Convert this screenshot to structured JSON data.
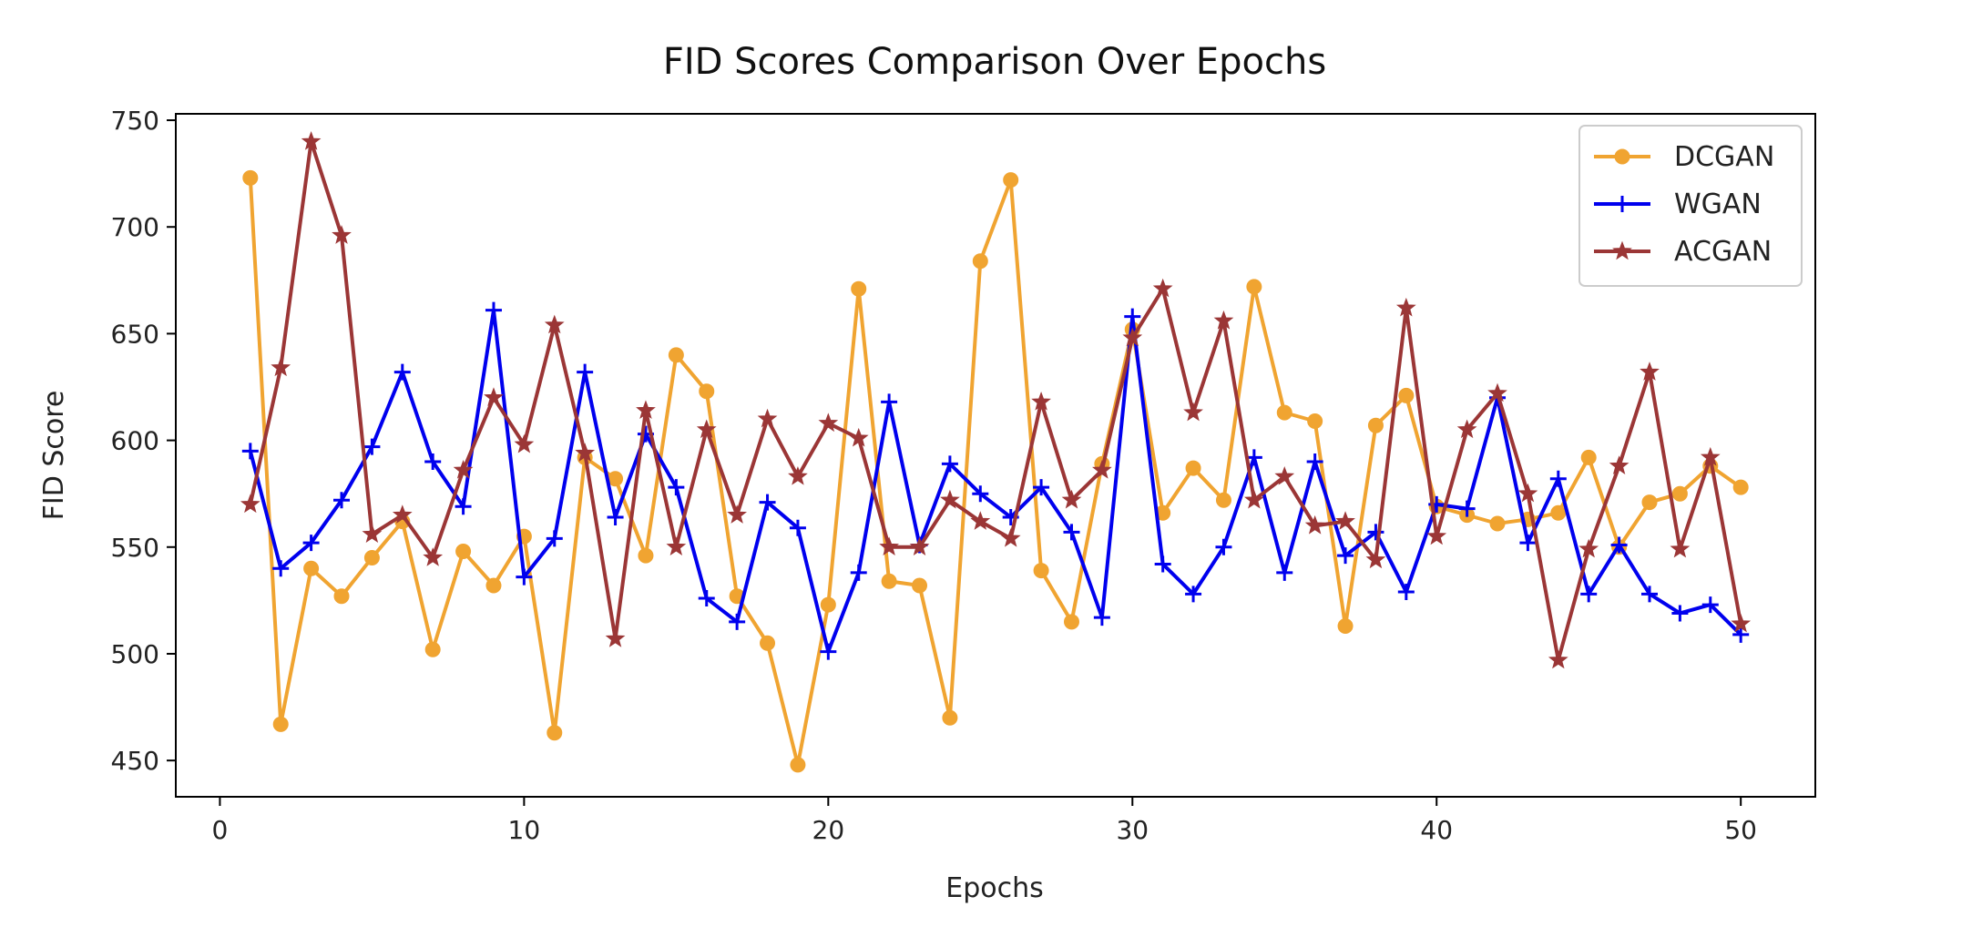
{
  "chart_data": {
    "type": "line",
    "title": "FID Scores Comparison Over Epochs",
    "xlabel": "Epochs",
    "ylabel": "FID Score",
    "xlim": [
      -1.45,
      52.45
    ],
    "ylim": [
      433,
      753
    ],
    "xticks": [
      0,
      10,
      20,
      30,
      40,
      50
    ],
    "yticks": [
      450,
      500,
      550,
      600,
      650,
      700,
      750
    ],
    "grid": false,
    "legend_position": "top-right",
    "x": [
      1,
      2,
      3,
      4,
      5,
      6,
      7,
      8,
      9,
      10,
      11,
      12,
      13,
      14,
      15,
      16,
      17,
      18,
      19,
      20,
      21,
      22,
      23,
      24,
      25,
      26,
      27,
      28,
      29,
      30,
      31,
      32,
      33,
      34,
      35,
      36,
      37,
      38,
      39,
      40,
      41,
      42,
      43,
      44,
      45,
      46,
      47,
      48,
      49,
      50
    ],
    "series": [
      {
        "name": "DCGAN",
        "color": "#F0A431",
        "marker": "circle",
        "values": [
          723,
          467,
          540,
          527,
          545,
          562,
          502,
          548,
          532,
          555,
          463,
          592,
          582,
          546,
          640,
          623,
          527,
          505,
          448,
          523,
          671,
          534,
          532,
          470,
          684,
          722,
          539,
          515,
          589,
          652,
          566,
          587,
          572,
          672,
          613,
          609,
          513,
          607,
          621,
          569,
          565,
          561,
          563,
          566,
          592,
          550,
          571,
          575,
          588,
          578
        ]
      },
      {
        "name": "WGAN",
        "color": "#0000EE",
        "marker": "plus",
        "values": [
          595,
          540,
          552,
          572,
          597,
          632,
          590,
          569,
          661,
          536,
          554,
          632,
          564,
          603,
          578,
          526,
          515,
          571,
          559,
          501,
          538,
          618,
          551,
          589,
          575,
          564,
          578,
          557,
          517,
          658,
          542,
          528,
          550,
          592,
          538,
          590,
          546,
          557,
          529,
          570,
          568,
          620,
          552,
          582,
          528,
          551,
          528,
          519,
          523,
          509
        ]
      },
      {
        "name": "ACGAN",
        "color": "#9B3636",
        "marker": "star",
        "values": [
          570,
          634,
          740,
          696,
          556,
          565,
          545,
          586,
          620,
          598,
          654,
          594,
          507,
          614,
          550,
          605,
          565,
          610,
          583,
          608,
          601,
          550,
          550,
          572,
          562,
          554,
          618,
          572,
          586,
          648,
          671,
          613,
          656,
          572,
          583,
          560,
          562,
          544,
          662,
          555,
          605,
          622,
          575,
          497,
          549,
          588,
          632,
          549,
          592,
          514
        ]
      }
    ]
  }
}
